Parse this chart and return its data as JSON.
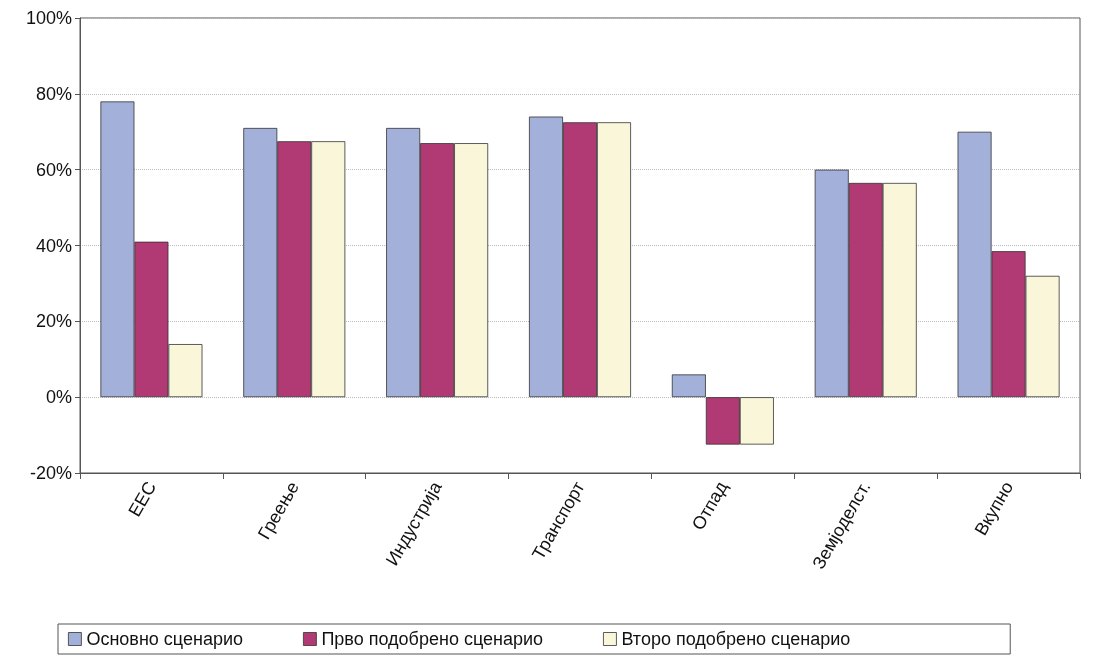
{
  "chart_data": {
    "type": "bar",
    "categories": [
      "ЕЕС",
      "Греење",
      "Индустрија",
      "Транспорт",
      "Отпад",
      "Земјоделст.",
      "Вкупно"
    ],
    "series": [
      {
        "name": "Основно сценарио",
        "color": "#a3b0da",
        "values": [
          78,
          71,
          71,
          74,
          6,
          60,
          70
        ]
      },
      {
        "name": "Прво подобрено сценарио",
        "color": "#b23a74",
        "values": [
          41,
          67.5,
          67,
          72.5,
          -12.5,
          56.5,
          38.5
        ]
      },
      {
        "name": "Второ подобрено сценарио",
        "color": "#faf6da",
        "values": [
          14,
          67.5,
          67,
          72.5,
          -12.5,
          56.5,
          32
        ]
      }
    ],
    "ylim": [
      -20,
      100
    ],
    "yticks": [
      {
        "value": -20,
        "label": "-20%"
      },
      {
        "value": 0,
        "label": "0%"
      },
      {
        "value": 20,
        "label": "20%"
      },
      {
        "value": 40,
        "label": "40%"
      },
      {
        "value": 60,
        "label": "60%"
      },
      {
        "value": 80,
        "label": "80%"
      },
      {
        "value": 100,
        "label": "100%"
      }
    ],
    "grid": "y",
    "legend": "bottom"
  }
}
